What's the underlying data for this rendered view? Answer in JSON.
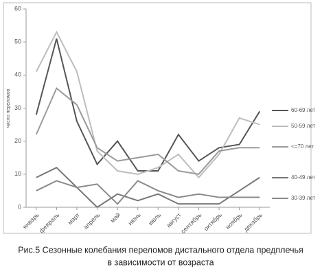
{
  "chart_data": {
    "type": "line",
    "caption": [
      "Рис.5 Сезонные колебания переломов дистального отдела предплечья",
      "в зависимости от возраста"
    ],
    "ylabel": "число переломов",
    "categories": [
      "январь",
      "февраль",
      "март",
      "апрель",
      "май",
      "июнь",
      "июль",
      "август",
      "сентябрь",
      "октябрь",
      "ноябрь",
      "декабрь"
    ],
    "series": [
      {
        "name": "60-69 лет",
        "color": "#555555",
        "values": [
          28,
          51,
          26,
          13,
          20,
          11,
          11,
          22,
          14,
          18,
          19,
          29
        ]
      },
      {
        "name": "50-59 лет",
        "color": "#bdbdbd",
        "values": [
          41,
          53,
          41,
          17,
          11,
          10,
          12,
          16,
          9,
          16,
          27,
          25
        ]
      },
      {
        "name": "<=70 лет",
        "color": "#9a9a9a",
        "values": [
          22,
          36,
          31,
          18,
          14,
          15,
          16,
          11,
          10,
          17,
          18,
          18
        ]
      },
      {
        "name": "40-49 лет",
        "color": "#777777",
        "values": [
          9,
          12,
          6,
          0,
          4,
          2,
          4,
          1,
          1,
          1,
          5,
          9
        ]
      },
      {
        "name": "30-39 лет",
        "color": "#8a8a8a",
        "values": [
          5,
          8,
          6,
          7,
          1,
          8,
          5,
          3,
          4,
          3,
          3,
          3
        ]
      }
    ],
    "ylim": [
      0,
      60
    ],
    "yticks": [
      0,
      10,
      20,
      30,
      40,
      50,
      60
    ]
  }
}
